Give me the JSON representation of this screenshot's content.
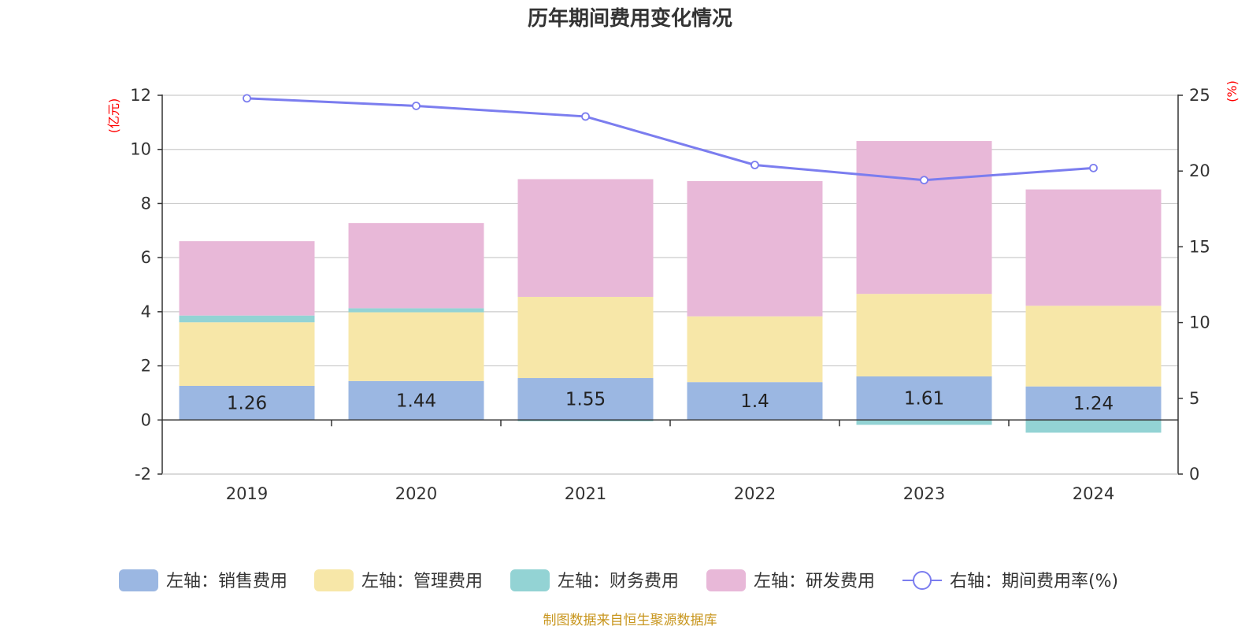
{
  "chart_data": {
    "type": "bar",
    "stacked": true,
    "title": "历年期间费用变化情况",
    "categories": [
      "2019",
      "2020",
      "2021",
      "2022",
      "2023",
      "2024"
    ],
    "left_axis": {
      "unit": "(亿元)",
      "ylim": [
        -2,
        12
      ],
      "ticks": [
        "-2",
        "0",
        "2",
        "4",
        "6",
        "8",
        "10",
        "12"
      ],
      "tick_values": [
        -2,
        0,
        2,
        4,
        6,
        8,
        10,
        12
      ]
    },
    "right_axis": {
      "unit": "(%)",
      "ylim": [
        0,
        25
      ],
      "ticks": [
        "0",
        "5",
        "10",
        "15",
        "20",
        "25"
      ],
      "tick_values": [
        0,
        5,
        10,
        15,
        20,
        25
      ]
    },
    "series": [
      {
        "name": "左轴：销售费用",
        "axis": "left",
        "type": "bar",
        "color": "#9bb7e2",
        "values": [
          1.26,
          1.44,
          1.55,
          1.4,
          1.61,
          1.24
        ],
        "labels": [
          "1.26",
          "1.44",
          "1.55",
          "1.4",
          "1.61",
          "1.24"
        ]
      },
      {
        "name": "左轴：管理费用",
        "axis": "left",
        "type": "bar",
        "color": "#f7e7a8",
        "values": [
          2.35,
          2.54,
          3.0,
          2.43,
          3.05,
          2.98
        ]
      },
      {
        "name": "左轴：财务费用",
        "axis": "left",
        "type": "bar",
        "color": "#93d3d4",
        "values": [
          0.25,
          0.15,
          -0.05,
          -0.02,
          -0.18,
          -0.47
        ]
      },
      {
        "name": "左轴：研发费用",
        "axis": "left",
        "type": "bar",
        "color": "#e8b8d8",
        "values": [
          2.75,
          3.15,
          4.35,
          5.0,
          5.65,
          4.3
        ]
      },
      {
        "name": "右轴：期间费用率(%)",
        "axis": "right",
        "type": "line",
        "color": "#7b7def",
        "values": [
          24.8,
          24.3,
          23.6,
          20.4,
          19.4,
          20.2
        ]
      }
    ],
    "legend_position": "bottom",
    "grid": true
  },
  "footer": {
    "source": "制图数据来自恒生聚源数据库"
  }
}
